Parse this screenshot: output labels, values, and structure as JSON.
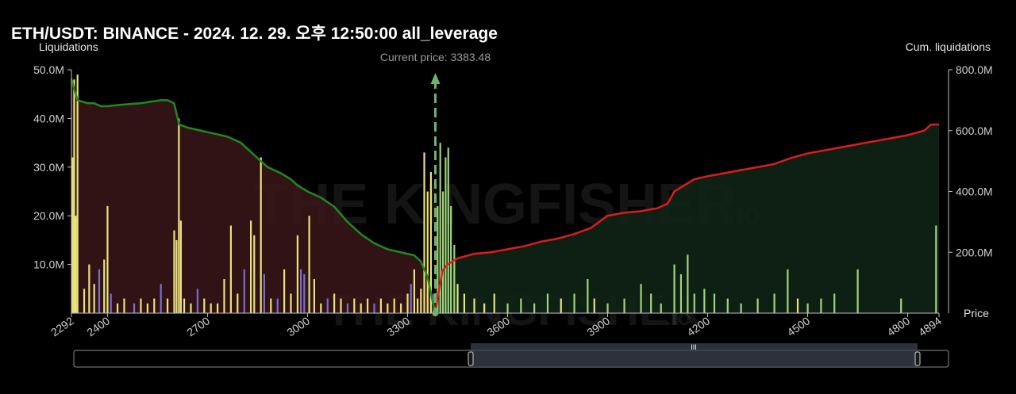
{
  "title": "ETH/USDT: BINANCE - 2024. 12. 29. 오후 12:50:00 all_leverage",
  "watermark": {
    "main": "THE KINGFISHER",
    "suffix": ".io"
  },
  "colors": {
    "background": "#000000",
    "long_fill": "#3a1519",
    "short_fill": "#0f2416",
    "long_line": "#1f8a1f",
    "short_line": "#e01b1b",
    "bar_yellow": "#e8e37a",
    "bar_green": "#9fd47a",
    "bar_purple": "#7b6fc9",
    "current_price_line": "#6cb36c",
    "axis_text": "#cfcfcf"
  },
  "chart_data": {
    "type": "bar",
    "title": "ETH/USDT: BINANCE - 2024. 12. 29. 오후 12:50:00 all_leverage",
    "xlabel": "Price",
    "ylabel": "Liquidations",
    "y2label": "Cum. liquidations",
    "current_price_label": "Current price: 3383.48",
    "current_price": 3383.48,
    "xlim": [
      2292,
      4894
    ],
    "ylim": [
      0,
      50
    ],
    "y2lim": [
      0,
      800
    ],
    "x_ticks": [
      2292,
      2400,
      2700,
      3000,
      3300,
      3600,
      3900,
      4200,
      4500,
      4800,
      4894
    ],
    "y_ticks": [
      10,
      20,
      30,
      40,
      50
    ],
    "y_tick_labels": [
      "10.0M",
      "20.0M",
      "30.0M",
      "40.0M",
      "50.0M"
    ],
    "y2_ticks": [
      200,
      400,
      600,
      800
    ],
    "y2_tick_labels": [
      "200.0M",
      "400.0M",
      "600.0M",
      "800.0M"
    ],
    "grid": false,
    "bars": [
      {
        "x": 2295,
        "value": 32,
        "color": "yellow"
      },
      {
        "x": 2300,
        "value": 48,
        "color": "yellow"
      },
      {
        "x": 2305,
        "value": 20,
        "color": "yellow"
      },
      {
        "x": 2310,
        "value": 49,
        "color": "yellow"
      },
      {
        "x": 2330,
        "value": 5,
        "color": "yellow"
      },
      {
        "x": 2345,
        "value": 10,
        "color": "yellow"
      },
      {
        "x": 2360,
        "value": 6,
        "color": "yellow"
      },
      {
        "x": 2375,
        "value": 9,
        "color": "purple"
      },
      {
        "x": 2390,
        "value": 11,
        "color": "yellow"
      },
      {
        "x": 2400,
        "value": 22,
        "color": "yellow"
      },
      {
        "x": 2410,
        "value": 4,
        "color": "purple"
      },
      {
        "x": 2430,
        "value": 2,
        "color": "yellow"
      },
      {
        "x": 2450,
        "value": 3,
        "color": "yellow"
      },
      {
        "x": 2480,
        "value": 2,
        "color": "purple"
      },
      {
        "x": 2500,
        "value": 3,
        "color": "yellow"
      },
      {
        "x": 2520,
        "value": 2,
        "color": "yellow"
      },
      {
        "x": 2540,
        "value": 3,
        "color": "yellow"
      },
      {
        "x": 2560,
        "value": 6,
        "color": "purple"
      },
      {
        "x": 2580,
        "value": 3,
        "color": "yellow"
      },
      {
        "x": 2600,
        "value": 17,
        "color": "yellow"
      },
      {
        "x": 2607,
        "value": 15,
        "color": "yellow"
      },
      {
        "x": 2614,
        "value": 40,
        "color": "yellow"
      },
      {
        "x": 2620,
        "value": 19,
        "color": "yellow"
      },
      {
        "x": 2630,
        "value": 3,
        "color": "yellow"
      },
      {
        "x": 2650,
        "value": 2,
        "color": "yellow"
      },
      {
        "x": 2670,
        "value": 5,
        "color": "purple"
      },
      {
        "x": 2690,
        "value": 3,
        "color": "yellow"
      },
      {
        "x": 2710,
        "value": 2,
        "color": "yellow"
      },
      {
        "x": 2730,
        "value": 2,
        "color": "yellow"
      },
      {
        "x": 2750,
        "value": 7,
        "color": "yellow"
      },
      {
        "x": 2770,
        "value": 18,
        "color": "yellow"
      },
      {
        "x": 2790,
        "value": 4,
        "color": "yellow"
      },
      {
        "x": 2810,
        "value": 9,
        "color": "purple"
      },
      {
        "x": 2830,
        "value": 19,
        "color": "yellow"
      },
      {
        "x": 2840,
        "value": 16,
        "color": "yellow"
      },
      {
        "x": 2860,
        "value": 32,
        "color": "yellow"
      },
      {
        "x": 2870,
        "value": 8,
        "color": "purple"
      },
      {
        "x": 2890,
        "value": 3,
        "color": "yellow"
      },
      {
        "x": 2910,
        "value": 3,
        "color": "purple"
      },
      {
        "x": 2930,
        "value": 9,
        "color": "yellow"
      },
      {
        "x": 2950,
        "value": 4,
        "color": "yellow"
      },
      {
        "x": 2970,
        "value": 16,
        "color": "yellow"
      },
      {
        "x": 2980,
        "value": 9,
        "color": "purple"
      },
      {
        "x": 2990,
        "value": 8,
        "color": "purple"
      },
      {
        "x": 3005,
        "value": 20,
        "color": "yellow"
      },
      {
        "x": 3020,
        "value": 7,
        "color": "yellow"
      },
      {
        "x": 3040,
        "value": 2,
        "color": "yellow"
      },
      {
        "x": 3060,
        "value": 3,
        "color": "purple"
      },
      {
        "x": 3080,
        "value": 4,
        "color": "yellow"
      },
      {
        "x": 3100,
        "value": 3,
        "color": "yellow"
      },
      {
        "x": 3120,
        "value": 2,
        "color": "purple"
      },
      {
        "x": 3140,
        "value": 3,
        "color": "yellow"
      },
      {
        "x": 3160,
        "value": 2,
        "color": "yellow"
      },
      {
        "x": 3180,
        "value": 3,
        "color": "yellow"
      },
      {
        "x": 3200,
        "value": 2,
        "color": "purple"
      },
      {
        "x": 3220,
        "value": 3,
        "color": "yellow"
      },
      {
        "x": 3240,
        "value": 2,
        "color": "yellow"
      },
      {
        "x": 3260,
        "value": 3,
        "color": "yellow"
      },
      {
        "x": 3280,
        "value": 2,
        "color": "yellow"
      },
      {
        "x": 3300,
        "value": 4,
        "color": "yellow"
      },
      {
        "x": 3310,
        "value": 6,
        "color": "purple"
      },
      {
        "x": 3320,
        "value": 9,
        "color": "yellow"
      },
      {
        "x": 3330,
        "value": 3,
        "color": "yellow"
      },
      {
        "x": 3340,
        "value": 5,
        "color": "yellow"
      },
      {
        "x": 3350,
        "value": 33,
        "color": "yellow"
      },
      {
        "x": 3360,
        "value": 25,
        "color": "yellow"
      },
      {
        "x": 3370,
        "value": 29,
        "color": "yellow"
      },
      {
        "x": 3378,
        "value": 4,
        "color": "purple"
      },
      {
        "x": 3390,
        "value": 22,
        "color": "green"
      },
      {
        "x": 3398,
        "value": 35,
        "color": "green"
      },
      {
        "x": 3406,
        "value": 25,
        "color": "green"
      },
      {
        "x": 3414,
        "value": 32,
        "color": "green"
      },
      {
        "x": 3422,
        "value": 34,
        "color": "green"
      },
      {
        "x": 3430,
        "value": 22,
        "color": "green"
      },
      {
        "x": 3440,
        "value": 14,
        "color": "green"
      },
      {
        "x": 3450,
        "value": 6,
        "color": "yellow"
      },
      {
        "x": 3470,
        "value": 4,
        "color": "yellow"
      },
      {
        "x": 3500,
        "value": 3,
        "color": "yellow"
      },
      {
        "x": 3530,
        "value": 2,
        "color": "yellow"
      },
      {
        "x": 3560,
        "value": 4,
        "color": "yellow"
      },
      {
        "x": 3600,
        "value": 2,
        "color": "green"
      },
      {
        "x": 3640,
        "value": 3,
        "color": "green"
      },
      {
        "x": 3680,
        "value": 2,
        "color": "green"
      },
      {
        "x": 3720,
        "value": 4,
        "color": "green"
      },
      {
        "x": 3760,
        "value": 3,
        "color": "yellow"
      },
      {
        "x": 3800,
        "value": 4,
        "color": "green"
      },
      {
        "x": 3840,
        "value": 7,
        "color": "green"
      },
      {
        "x": 3860,
        "value": 3,
        "color": "yellow"
      },
      {
        "x": 3900,
        "value": 2,
        "color": "green"
      },
      {
        "x": 3950,
        "value": 3,
        "color": "green"
      },
      {
        "x": 4000,
        "value": 6,
        "color": "green"
      },
      {
        "x": 4030,
        "value": 4,
        "color": "green"
      },
      {
        "x": 4060,
        "value": 2,
        "color": "green"
      },
      {
        "x": 4100,
        "value": 10,
        "color": "green"
      },
      {
        "x": 4120,
        "value": 8,
        "color": "green"
      },
      {
        "x": 4140,
        "value": 12,
        "color": "green"
      },
      {
        "x": 4160,
        "value": 4,
        "color": "green"
      },
      {
        "x": 4190,
        "value": 5,
        "color": "green"
      },
      {
        "x": 4220,
        "value": 4,
        "color": "green"
      },
      {
        "x": 4260,
        "value": 3,
        "color": "green"
      },
      {
        "x": 4300,
        "value": 2,
        "color": "green"
      },
      {
        "x": 4350,
        "value": 3,
        "color": "green"
      },
      {
        "x": 4400,
        "value": 4,
        "color": "green"
      },
      {
        "x": 4440,
        "value": 9,
        "color": "green"
      },
      {
        "x": 4470,
        "value": 3,
        "color": "yellow"
      },
      {
        "x": 4500,
        "value": 2,
        "color": "green"
      },
      {
        "x": 4540,
        "value": 3,
        "color": "green"
      },
      {
        "x": 4580,
        "value": 4,
        "color": "green"
      },
      {
        "x": 4650,
        "value": 9,
        "color": "green"
      },
      {
        "x": 4780,
        "value": 3,
        "color": "green"
      },
      {
        "x": 4885,
        "value": 18,
        "color": "green"
      }
    ],
    "long_cum_curve": [
      [
        2292,
        770
      ],
      [
        2310,
        700
      ],
      [
        2340,
        690
      ],
      [
        2360,
        690
      ],
      [
        2380,
        680
      ],
      [
        2400,
        680
      ],
      [
        2440,
        685
      ],
      [
        2500,
        690
      ],
      [
        2560,
        700
      ],
      [
        2580,
        700
      ],
      [
        2600,
        690
      ],
      [
        2615,
        620
      ],
      [
        2640,
        610
      ],
      [
        2680,
        600
      ],
      [
        2720,
        590
      ],
      [
        2760,
        580
      ],
      [
        2800,
        560
      ],
      [
        2840,
        520
      ],
      [
        2860,
        500
      ],
      [
        2880,
        480
      ],
      [
        2900,
        470
      ],
      [
        2920,
        460
      ],
      [
        2950,
        440
      ],
      [
        2970,
        420
      ],
      [
        3000,
        400
      ],
      [
        3040,
        380
      ],
      [
        3080,
        350
      ],
      [
        3120,
        300
      ],
      [
        3160,
        260
      ],
      [
        3200,
        230
      ],
      [
        3240,
        210
      ],
      [
        3280,
        200
      ],
      [
        3320,
        190
      ],
      [
        3340,
        170
      ],
      [
        3360,
        120
      ],
      [
        3375,
        40
      ],
      [
        3383,
        0
      ]
    ],
    "short_cum_curve": [
      [
        3383,
        0
      ],
      [
        3395,
        80
      ],
      [
        3405,
        140
      ],
      [
        3420,
        160
      ],
      [
        3450,
        180
      ],
      [
        3500,
        195
      ],
      [
        3550,
        200
      ],
      [
        3600,
        210
      ],
      [
        3650,
        220
      ],
      [
        3700,
        235
      ],
      [
        3750,
        245
      ],
      [
        3800,
        260
      ],
      [
        3850,
        280
      ],
      [
        3900,
        320
      ],
      [
        3950,
        330
      ],
      [
        4000,
        335
      ],
      [
        4050,
        345
      ],
      [
        4080,
        360
      ],
      [
        4100,
        400
      ],
      [
        4130,
        420
      ],
      [
        4160,
        440
      ],
      [
        4200,
        450
      ],
      [
        4250,
        460
      ],
      [
        4300,
        470
      ],
      [
        4350,
        480
      ],
      [
        4400,
        490
      ],
      [
        4450,
        510
      ],
      [
        4500,
        525
      ],
      [
        4550,
        535
      ],
      [
        4600,
        545
      ],
      [
        4650,
        555
      ],
      [
        4700,
        565
      ],
      [
        4750,
        575
      ],
      [
        4800,
        585
      ],
      [
        4850,
        600
      ],
      [
        4870,
        620
      ],
      [
        4894,
        620
      ]
    ]
  },
  "range_slider": {
    "label": "range-slider"
  }
}
